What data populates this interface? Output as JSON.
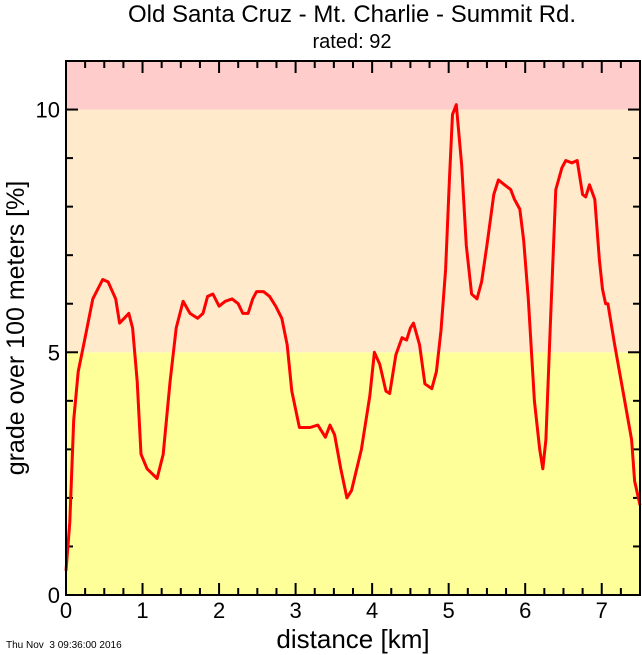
{
  "chart_data": {
    "type": "line",
    "title": "Old Santa Cruz - Mt. Charlie - Summit Rd.",
    "subtitle": "rated: 92",
    "xlabel": "distance [km]",
    "ylabel": "grade over 100 meters [%]",
    "xlim": [
      0,
      7.5
    ],
    "ylim": [
      0,
      11
    ],
    "x_ticks": [
      "0",
      "1",
      "2",
      "3",
      "4",
      "5",
      "6",
      "7"
    ],
    "y_ticks": [
      "0",
      "5",
      "10"
    ],
    "grid": false,
    "bands": [
      {
        "from": 0,
        "to": 5,
        "color": "#ffff99"
      },
      {
        "from": 5,
        "to": 10,
        "color": "#ffebcc"
      },
      {
        "from": 10,
        "to": 11,
        "color": "#ffcccc"
      }
    ],
    "line_color": "#ff0000",
    "series": [
      {
        "x": [
          0,
          0.05,
          0.1,
          0.16,
          0.25,
          0.35,
          0.48,
          0.55,
          0.65,
          0.7,
          0.76,
          0.82,
          0.87,
          0.93,
          0.98,
          1.06,
          1.19,
          1.27,
          1.36,
          1.44,
          1.53,
          1.62,
          1.72,
          1.79,
          1.85,
          1.92,
          2.0,
          2.08,
          2.17,
          2.25,
          2.31,
          2.38,
          2.44,
          2.49,
          2.58,
          2.66,
          2.74,
          2.82,
          2.89,
          2.95,
          3.05,
          3.19,
          3.29,
          3.39,
          3.45,
          3.51,
          3.59,
          3.67,
          3.73,
          3.86,
          3.97,
          4.03,
          4.1,
          4.18,
          4.23,
          4.31,
          4.39,
          4.45,
          4.5,
          4.54,
          4.62,
          4.69,
          4.78,
          4.84,
          4.9,
          4.96,
          5.01,
          5.05,
          5.1,
          5.17,
          5.23,
          5.3,
          5.37,
          5.43,
          5.5,
          5.59,
          5.65,
          5.73,
          5.81,
          5.86,
          5.93,
          5.98,
          6.04,
          6.12,
          6.19,
          6.23,
          6.27,
          6.33,
          6.4,
          6.48,
          6.53,
          6.61,
          6.68,
          6.75,
          6.79,
          6.84,
          6.91,
          6.97,
          7.01,
          7.05,
          7.08,
          7.17,
          7.3,
          7.39,
          7.43,
          7.5
        ],
        "y": [
          0.5,
          1.5,
          3.6,
          4.6,
          5.3,
          6.1,
          6.5,
          6.45,
          6.1,
          5.6,
          5.7,
          5.8,
          5.5,
          4.4,
          2.9,
          2.6,
          2.4,
          2.9,
          4.4,
          5.5,
          6.05,
          5.8,
          5.7,
          5.8,
          6.15,
          6.2,
          5.95,
          6.05,
          6.1,
          6.0,
          5.8,
          5.8,
          6.1,
          6.25,
          6.25,
          6.15,
          5.95,
          5.7,
          5.15,
          4.2,
          3.45,
          3.45,
          3.5,
          3.25,
          3.5,
          3.3,
          2.6,
          2.0,
          2.15,
          3.0,
          4.1,
          5.0,
          4.75,
          4.2,
          4.15,
          4.95,
          5.3,
          5.25,
          5.5,
          5.6,
          5.15,
          4.35,
          4.25,
          4.6,
          5.45,
          6.7,
          8.55,
          9.9,
          10.1,
          8.85,
          7.2,
          6.2,
          6.1,
          6.45,
          7.2,
          8.25,
          8.55,
          8.45,
          8.35,
          8.15,
          7.95,
          7.3,
          6.1,
          4.0,
          3.0,
          2.6,
          3.2,
          5.65,
          8.35,
          8.8,
          8.95,
          8.9,
          8.95,
          8.25,
          8.2,
          8.45,
          8.15,
          6.9,
          6.3,
          6.0,
          6.0,
          5.15,
          4.0,
          3.2,
          2.35,
          1.85
        ]
      }
    ]
  },
  "footer": {
    "timestamp": "Thu Nov  3 09:36:00 2016"
  }
}
